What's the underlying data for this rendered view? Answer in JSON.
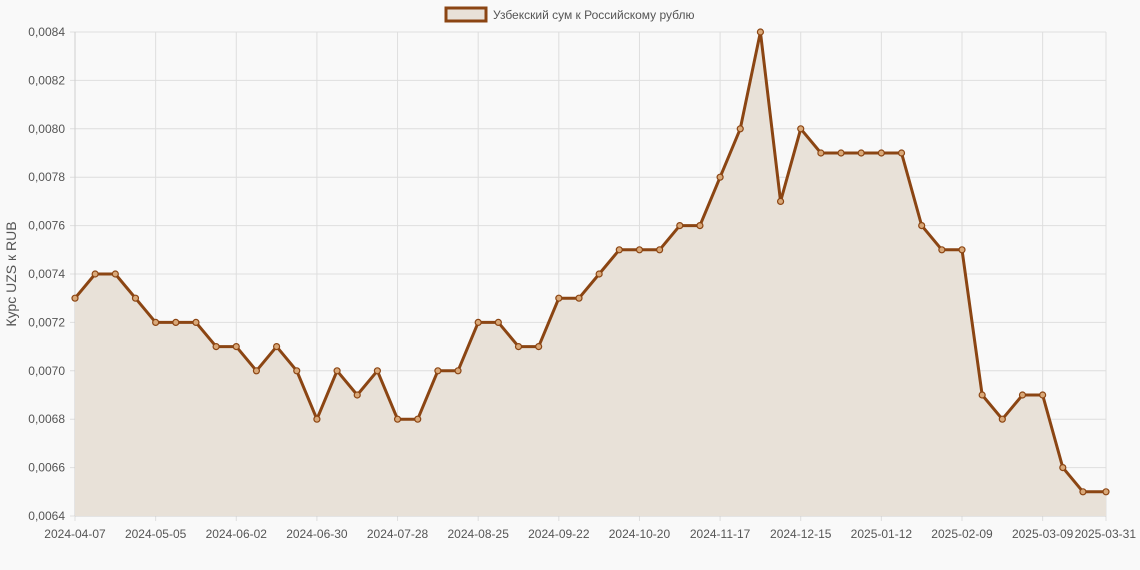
{
  "chart_data": {
    "type": "line",
    "title": "",
    "xlabel": "",
    "ylabel": "Курс UZS к RUB",
    "legend": {
      "position": "top-center",
      "entries": [
        "Узбекский сум к Российскому рублю"
      ]
    },
    "grid": true,
    "ylim": [
      0.0064,
      0.0084
    ],
    "y_ticks": [
      "0,0064",
      "0,0066",
      "0,0068",
      "0,0070",
      "0,0072",
      "0,0074",
      "0,0076",
      "0,0078",
      "0,0080",
      "0,0082",
      "0,0084"
    ],
    "x_ticks": [
      "2024-04-07",
      "2024-05-05",
      "2024-06-02",
      "2024-06-30",
      "2024-07-28",
      "2024-08-25",
      "2024-09-22",
      "2024-10-20",
      "2024-11-17",
      "2024-12-15",
      "2025-01-12",
      "2025-02-09",
      "2025-03-09",
      "2025-03-31"
    ],
    "series": [
      {
        "name": "Узбекский сум к Российскому рублю",
        "color": "#8b4513",
        "fill": "#e8e1d8",
        "x": [
          "2024-04-07",
          "2024-04-14",
          "2024-04-21",
          "2024-04-28",
          "2024-05-05",
          "2024-05-12",
          "2024-05-19",
          "2024-05-26",
          "2024-06-02",
          "2024-06-09",
          "2024-06-16",
          "2024-06-23",
          "2024-06-30",
          "2024-07-07",
          "2024-07-14",
          "2024-07-21",
          "2024-07-28",
          "2024-08-04",
          "2024-08-11",
          "2024-08-18",
          "2024-08-25",
          "2024-09-01",
          "2024-09-08",
          "2024-09-15",
          "2024-09-22",
          "2024-09-29",
          "2024-10-06",
          "2024-10-13",
          "2024-10-20",
          "2024-10-27",
          "2024-11-03",
          "2024-11-10",
          "2024-11-17",
          "2024-11-24",
          "2024-12-01",
          "2024-12-08",
          "2024-12-15",
          "2024-12-22",
          "2024-12-29",
          "2025-01-05",
          "2025-01-12",
          "2025-01-19",
          "2025-01-26",
          "2025-02-02",
          "2025-02-09",
          "2025-02-16",
          "2025-02-23",
          "2025-03-02",
          "2025-03-09",
          "2025-03-16",
          "2025-03-23",
          "2025-03-31"
        ],
        "values": [
          0.0073,
          0.0074,
          0.0074,
          0.0073,
          0.0072,
          0.0072,
          0.0072,
          0.0071,
          0.0071,
          0.007,
          0.0071,
          0.007,
          0.0068,
          0.007,
          0.0069,
          0.007,
          0.0068,
          0.0068,
          0.007,
          0.007,
          0.0072,
          0.0072,
          0.0071,
          0.0071,
          0.0073,
          0.0073,
          0.0074,
          0.0075,
          0.0075,
          0.0075,
          0.0076,
          0.0076,
          0.0078,
          0.008,
          0.0084,
          0.0077,
          0.008,
          0.0079,
          0.0079,
          0.0079,
          0.0079,
          0.0079,
          0.0076,
          0.0075,
          0.0075,
          0.0069,
          0.0068,
          0.0069,
          0.0069,
          0.0066,
          0.0065,
          0.0065
        ]
      }
    ]
  }
}
